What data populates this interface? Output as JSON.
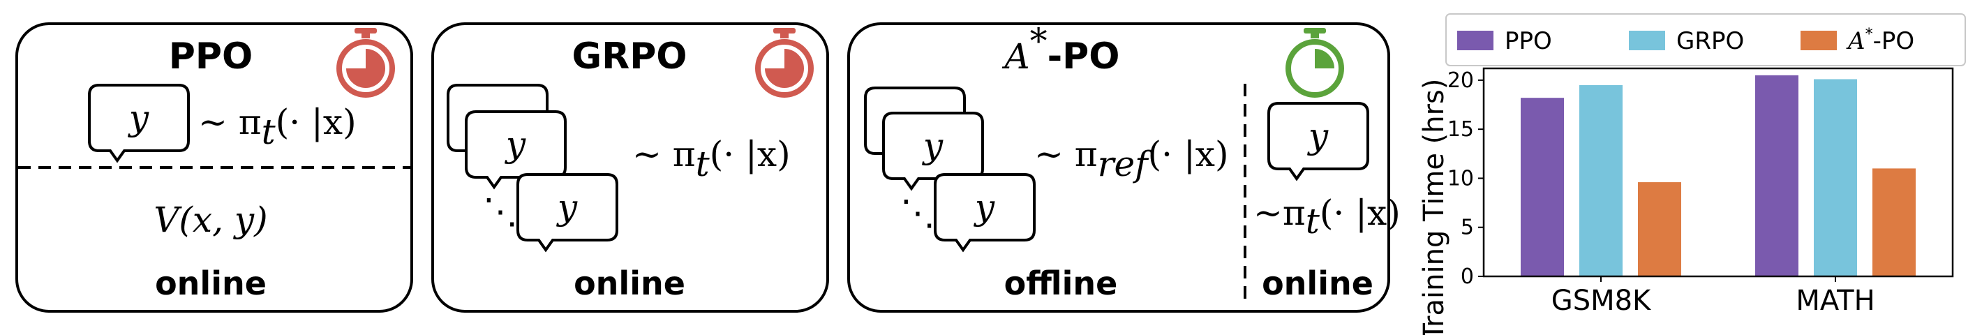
{
  "panels": {
    "ppo": {
      "title": "PPO",
      "policy": "~ π",
      "sub": "t",
      "cond": "(· |x)",
      "value": "V(x, y)",
      "mode": "online",
      "timer_color": "#d05a50"
    },
    "grpo": {
      "title": "GRPO",
      "policy": "~ π",
      "sub": "t",
      "cond": "(· |x)",
      "mode": "online",
      "timer_color": "#d05a50"
    },
    "apo": {
      "title_main": "A",
      "title_sup": "*",
      "title_rest": "-PO",
      "ref_policy": "~ π",
      "ref_sub": "ref",
      "ref_cond": "(· |x)",
      "online_policy": "~π",
      "online_sub": "t",
      "online_cond": "(· |x)",
      "mode_offline": "offline",
      "mode_online": "online",
      "timer_color": "#5ba33b"
    },
    "bubble_text": "y",
    "dots": "⋱"
  },
  "chart_data": {
    "type": "bar",
    "categories": [
      "GSM8K",
      "MATH"
    ],
    "series": [
      {
        "name": "PPO",
        "values": [
          18.2,
          20.5
        ],
        "color": "#7a5aae"
      },
      {
        "name": "GRPO",
        "values": [
          19.5,
          20.1
        ],
        "color": "#78c4dc"
      },
      {
        "name_main": "A",
        "name_sup": "*",
        "name_rest": "-PO",
        "values": [
          9.6,
          11.0
        ],
        "color": "#dd7b42"
      }
    ],
    "ylabel": "Training Time (hrs)",
    "ylim": [
      0,
      21.2
    ],
    "yticks": [
      0,
      5,
      10,
      15,
      20
    ],
    "legend": "top"
  }
}
